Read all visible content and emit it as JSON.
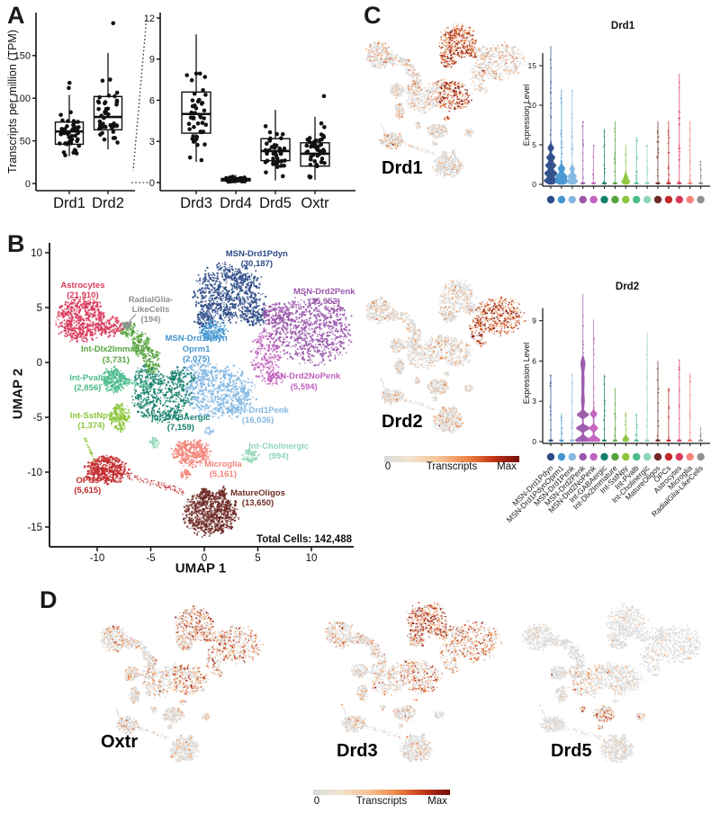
{
  "labels": {
    "panel_a": "A",
    "panel_b": "B",
    "panel_c": "C",
    "panel_d": "D",
    "tpm_ylabel": "Transcripts per million (TPM)",
    "umap1": "UMAP 1",
    "umap2": "UMAP 2",
    "total_cells": "Total Cells: 142,488",
    "expression_level": "Expression Level",
    "violin1_title": "Drd1",
    "violin2_title": "Drd2",
    "feat_drd1": "Drd1",
    "feat_drd2": "Drd2",
    "feat_oxtr": "Oxtr",
    "feat_drd3": "Drd3",
    "feat_drd5": "Drd5",
    "cb_zero": "0",
    "cb_mid": "Transcripts",
    "cb_max": "Max"
  },
  "colors": {
    "axis": "#1a1a1a",
    "dot_gray": "#dcdcdc",
    "gradient": [
      [
        0,
        "#d9d9d9"
      ],
      [
        0.18,
        "#f0e4d3"
      ],
      [
        0.4,
        "#f7c396"
      ],
      [
        0.6,
        "#ee8a4a"
      ],
      [
        0.8,
        "#c63818"
      ],
      [
        1,
        "#730c0c"
      ]
    ]
  },
  "chart_data": [
    {
      "id": "box_left",
      "type": "box",
      "ylabel": "Transcripts per million (TPM)",
      "yticks": [
        0,
        50,
        100,
        150
      ],
      "genes": [
        {
          "name": "Drd1",
          "median": 61,
          "q1": 46,
          "q3": 72,
          "whisker_low": 32,
          "whisker_high": 104,
          "outliers": [
            112,
            118
          ],
          "n": 44
        },
        {
          "name": "Drd2",
          "median": 78,
          "q1": 63,
          "q3": 102,
          "whisker_low": 40,
          "whisker_high": 153,
          "outliers": [
            188
          ],
          "n": 46
        }
      ]
    },
    {
      "id": "box_right",
      "type": "box",
      "yticks": [
        0,
        3,
        6,
        9,
        12
      ],
      "genes": [
        {
          "name": "Drd3",
          "median": 5.0,
          "q1": 3.6,
          "q3": 6.6,
          "whisker_low": 1.5,
          "whisker_high": 10.8,
          "outliers": [],
          "n": 44
        },
        {
          "name": "Drd4",
          "median": 0.2,
          "q1": 0.12,
          "q3": 0.3,
          "whisker_low": 0.02,
          "whisker_high": 0.55,
          "outliers": [],
          "n": 46
        },
        {
          "name": "Drd5",
          "median": 2.3,
          "q1": 1.6,
          "q3": 3.2,
          "whisker_low": 0.15,
          "whisker_high": 5.3,
          "outliers": [],
          "n": 44
        },
        {
          "name": "Oxtr",
          "median": 2.1,
          "q1": 1.2,
          "q3": 2.9,
          "whisker_low": 0.2,
          "whisker_high": 4.8,
          "outliers": [
            6.3
          ],
          "n": 45
        }
      ]
    },
    {
      "id": "umap_clusters",
      "type": "scatter",
      "xlabel": "UMAP 1",
      "ylabel": "UMAP 2",
      "xticks": [
        -10,
        -5,
        0,
        5,
        10
      ],
      "yticks": [
        10,
        5,
        0,
        -5,
        -10,
        -15
      ],
      "total_cells": 142488,
      "clusters": [
        {
          "name": "MSN-Drd1Pdyn",
          "count": "(30,187)",
          "color": "#2c4a87",
          "label": [
            "MSN-Drd1Pdyn",
            "(30,187)"
          ],
          "label_uv": [
            4.9,
            9.45
          ],
          "blobs": [
            [
              2.3,
              6.3,
              3.0,
              2.6
            ],
            [
              0.0,
              3.9,
              0.9,
              0.7
            ],
            [
              4.8,
              4.2,
              1.0,
              0.9
            ]
          ],
          "n": 950
        },
        {
          "name": "MSN-Drd1PdynOprm1",
          "count": "(2,075)",
          "color": "#4495d1",
          "label": [
            "MSN-Drd1Pdyn",
            "Oprm1",
            "(2,075)"
          ],
          "label_uv": [
            -0.75,
            1.2
          ],
          "blobs": [
            [
              0.8,
              2.9,
              1.3,
              0.85
            ]
          ],
          "n": 170
        },
        {
          "name": "MSN-Drd1Penk",
          "count": "(16,036)",
          "color": "#84b8e2",
          "label": [
            "MSN-Drd1Penk",
            "(16,036)"
          ],
          "label_uv": [
            5.0,
            -4.8
          ],
          "blobs": [
            [
              1.4,
              -2.7,
              3.1,
              2.3
            ],
            [
              -0.4,
              -0.7,
              1.3,
              0.9
            ],
            [
              0.4,
              -6.2,
              0.5,
              0.4
            ]
          ],
          "n": 780
        },
        {
          "name": "MSN-Drd2Penk",
          "count": "(25,952)",
          "color": "#9a57ab",
          "label": [
            "MSN-Drd2Penk",
            "(25,952)"
          ],
          "label_uv": [
            11.2,
            6.0
          ],
          "blobs": [
            [
              9.9,
              3.0,
              3.8,
              2.9
            ],
            [
              6.7,
              4.4,
              1.3,
              1.0
            ]
          ],
          "n": 900
        },
        {
          "name": "MSN-Drd2NoPenk",
          "count": "(5,594)",
          "color": "#c161bd",
          "label": [
            "MSN-Drd2NoPenk",
            "(5,594)"
          ],
          "label_uv": [
            9.3,
            -1.75
          ],
          "blobs": [
            [
              5.8,
              0.8,
              1.4,
              2.2
            ],
            [
              6.6,
              -1.4,
              0.9,
              0.7
            ]
          ],
          "n": 240
        },
        {
          "name": "Int-GABAergic",
          "count": "(7,159)",
          "color": "#157f6d",
          "label": [
            "Int-GABAergic",
            "(7,159)"
          ],
          "label_uv": [
            -2.2,
            -5.5
          ],
          "blobs": [
            [
              -3.9,
              -3.3,
              2.6,
              2.1
            ],
            [
              -5.4,
              -1.2,
              1.3,
              1.0
            ],
            [
              -2.1,
              -1.3,
              1.2,
              0.9
            ]
          ],
          "n": 620
        },
        {
          "name": "Int-Dlx2Immature",
          "count": "(3,731)",
          "color": "#57a33e",
          "label": [
            "Int-Dlx2Immature",
            "(3,731)"
          ],
          "label_uv": [
            -8.25,
            0.7
          ],
          "blobs": [
            [
              -7.0,
              2.9,
              0.9,
              0.7
            ],
            [
              -5.9,
              1.6,
              0.8,
              1.1
            ],
            [
              -4.9,
              0.2,
              0.8,
              1.1
            ]
          ],
          "n": 320
        },
        {
          "name": "Int-SstNpy",
          "count": "(1,374)",
          "color": "#8cc63c",
          "label": [
            "Int-SstNpy",
            "(1,374)"
          ],
          "label_uv": [
            -10.55,
            -5.3
          ],
          "blobs": [
            [
              -7.9,
              -5.0,
              0.85,
              1.25
            ]
          ],
          "lines": [
            [
              -11.2,
              -6.8,
              -10.1,
              -9.3,
              0.1,
              40
            ]
          ],
          "n": 200
        },
        {
          "name": "Int-Pvalb",
          "count": "(2,856)",
          "color": "#4cbc8c",
          "label": [
            "Int-Pvalb",
            "(2,856)"
          ],
          "label_uv": [
            -10.9,
            -1.85
          ],
          "blobs": [
            [
              -8.4,
              -1.6,
              1.2,
              1.1
            ]
          ],
          "lines": [
            [
              -7.4,
              -1.7,
              -4.9,
              -2.3,
              0.25,
              70
            ]
          ],
          "n": 240
        },
        {
          "name": "Int-Cholinergic",
          "count": "(994)",
          "color": "#8ed6b6",
          "label": [
            "Int-Cholinergic",
            "(994)"
          ],
          "label_uv": [
            6.95,
            -8.1
          ],
          "blobs": [
            [
              4.3,
              -8.5,
              0.75,
              0.6
            ],
            [
              -4.7,
              -7.3,
              0.45,
              0.5
            ]
          ],
          "n": 110
        },
        {
          "name": "MatureOligos",
          "count": "(13,650)",
          "color": "#6f2b26",
          "label": [
            "MatureOligos",
            "(13,650)"
          ],
          "label_uv": [
            5.0,
            -12.35
          ],
          "blobs": [
            [
              0.6,
              -13.8,
              2.4,
              1.9
            ],
            [
              0.0,
              -11.9,
              0.5,
              0.5
            ],
            [
              1.7,
              -11.8,
              0.4,
              0.5
            ]
          ],
          "n": 850
        },
        {
          "name": "OPCs",
          "count": "(5,615)",
          "color": "#c2292a",
          "label": [
            "OPCs",
            "(5,615)"
          ],
          "label_uv": [
            -10.9,
            -11.25
          ],
          "blobs": [
            [
              -9.2,
              -9.8,
              1.9,
              1.2
            ]
          ],
          "lines": [
            [
              -7.4,
              -10.2,
              -1.7,
              -11.9,
              0.28,
              90
            ]
          ],
          "n": 440
        },
        {
          "name": "Astrocytes",
          "count": "(21,910)",
          "color": "#d93a5c",
          "label": [
            "Astrocytes",
            "(21,910)"
          ],
          "label_uv": [
            -11.35,
            6.55
          ],
          "blobs": [
            [
              -11.5,
              4.0,
              2.2,
              2.0
            ],
            [
              -8.8,
              3.3,
              1.2,
              0.9
            ]
          ],
          "n": 720
        },
        {
          "name": "Microglia",
          "count": "(5,161)",
          "color": "#f48379",
          "label": [
            "Microglia",
            "(5,161)"
          ],
          "label_uv": [
            1.75,
            -9.75
          ],
          "blobs": [
            [
              -1.2,
              -8.2,
              1.7,
              1.2
            ],
            [
              -1.8,
              -10.2,
              0.5,
              0.4
            ]
          ],
          "n": 400
        },
        {
          "name": "RadialGlia-LikeCells",
          "count": "(194)",
          "color": "#8e9093",
          "label": [
            "RadialGlia-",
            "LikeCells",
            "(194)"
          ],
          "label_uv": [
            -5.0,
            4.75
          ],
          "blobs": [
            [
              -7.3,
              3.4,
              0.4,
              0.3
            ]
          ],
          "n": 35
        }
      ]
    },
    {
      "id": "violin_drd1",
      "type": "violin",
      "title": "Drd1",
      "ylabel": "Expression Level",
      "yticks": [
        0,
        5,
        10,
        15
      ],
      "max": [
        17.5,
        12,
        12,
        8,
        5,
        7,
        8,
        5,
        6,
        5,
        8,
        8,
        14,
        8,
        3
      ],
      "bodies": {
        "0": {
          "top": 5.5,
          "w": 7.5,
          "bumps": [
            [
              0.45,
              1,
              0.3
            ],
            [
              1.4,
              0.92,
              0.3
            ],
            [
              2.4,
              0.78,
              0.3
            ],
            [
              3.4,
              0.62,
              0.3
            ],
            [
              4.6,
              0.45,
              0.3
            ]
          ]
        },
        "1": {
          "top": 3.0,
          "w": 7,
          "bumps": [
            [
              0.35,
              1,
              0.28
            ],
            [
              1.05,
              0.85,
              0.28
            ],
            [
              2.0,
              0.55,
              0.3
            ]
          ]
        },
        "2": {
          "top": 2.6,
          "w": 6,
          "bumps": [
            [
              0.35,
              1,
              0.26
            ],
            [
              1.05,
              0.75,
              0.26
            ],
            [
              1.95,
              0.45,
              0.28
            ]
          ]
        },
        "7": {
          "top": 1.7,
          "w": 4.5,
          "bumps": [
            [
              0.3,
              1,
              0.26
            ],
            [
              0.95,
              0.45,
              0.3
            ]
          ]
        }
      }
    },
    {
      "id": "violin_drd2",
      "type": "violin",
      "title": "Drd2",
      "ylabel": "Expression Level",
      "yticks": [
        0,
        3,
        6,
        9
      ],
      "max": [
        5,
        2.1,
        5.1,
        11,
        9.1,
        5,
        4,
        2.2,
        2.1,
        8.1,
        6,
        4,
        6.1,
        5.1,
        1.1
      ],
      "bodies": {
        "3": {
          "top": 6.4,
          "w": 8,
          "bumps": [
            [
              0.1,
              1.05,
              0.2
            ],
            [
              1.0,
              0.95,
              0.16
            ],
            [
              2.0,
              0.8,
              0.16
            ],
            [
              3.0,
              0.22,
              0.5
            ],
            [
              4.5,
              0.2,
              0.6
            ],
            [
              5.8,
              0.3,
              0.35
            ]
          ]
        },
        "4": {
          "top": 2.5,
          "w": 7,
          "bumps": [
            [
              0.1,
              1.05,
              0.2
            ],
            [
              1.0,
              0.7,
              0.16
            ],
            [
              2.05,
              0.55,
              0.16
            ]
          ]
        },
        "7": {
          "top": 0.55,
          "w": 3.5,
          "bumps": [
            [
              0.15,
              1,
              0.18
            ]
          ]
        }
      }
    },
    {
      "id": "feature_plots",
      "type": "scatter",
      "genes": [
        "Drd1",
        "Drd2",
        "Oxtr",
        "Drd3",
        "Drd5"
      ],
      "colorbar": [
        "0",
        "Transcripts",
        "Max"
      ],
      "high_expression": {
        "Drd1": [
          "MSN-Drd1Pdyn",
          "MSN-Drd1PdynOprm1",
          "MSN-Drd1Penk"
        ],
        "Drd2": [
          "MSN-Drd2Penk",
          "MSN-Drd2NoPenk"
        ],
        "Oxtr": [
          "MSN-Drd1Pdyn",
          "MSN-Drd2Penk"
        ],
        "Drd3": [
          "MSN-Drd1Pdyn",
          "MSN-Drd2Penk"
        ],
        "Drd5": [
          "Int-Cholinergic",
          "Microglia"
        ]
      },
      "intensity": {
        "drd1": [
          0.92,
          0.78,
          0.82,
          0.3,
          0.25,
          0.28,
          0.3,
          0.28,
          0.22,
          0.22,
          0.18,
          0.3,
          0.3,
          0.18,
          0.12
        ],
        "drd2": [
          0.22,
          0.22,
          0.26,
          0.9,
          0.78,
          0.22,
          0.2,
          0.16,
          0.16,
          0.22,
          0.28,
          0.22,
          0.26,
          0.18,
          0.1
        ],
        "oxtr": [
          0.55,
          0.4,
          0.45,
          0.5,
          0.4,
          0.28,
          0.28,
          0.24,
          0.24,
          0.2,
          0.18,
          0.25,
          0.33,
          0.2,
          0.1
        ],
        "drd3": [
          0.7,
          0.5,
          0.5,
          0.55,
          0.45,
          0.28,
          0.28,
          0.2,
          0.2,
          0.2,
          0.18,
          0.2,
          0.33,
          0.2,
          0.1
        ],
        "drd5": [
          0.06,
          0.07,
          0.13,
          0.06,
          0.08,
          0.22,
          0.1,
          0.08,
          0.08,
          0.5,
          0.1,
          0.08,
          0.1,
          0.45,
          0.04
        ]
      }
    }
  ]
}
